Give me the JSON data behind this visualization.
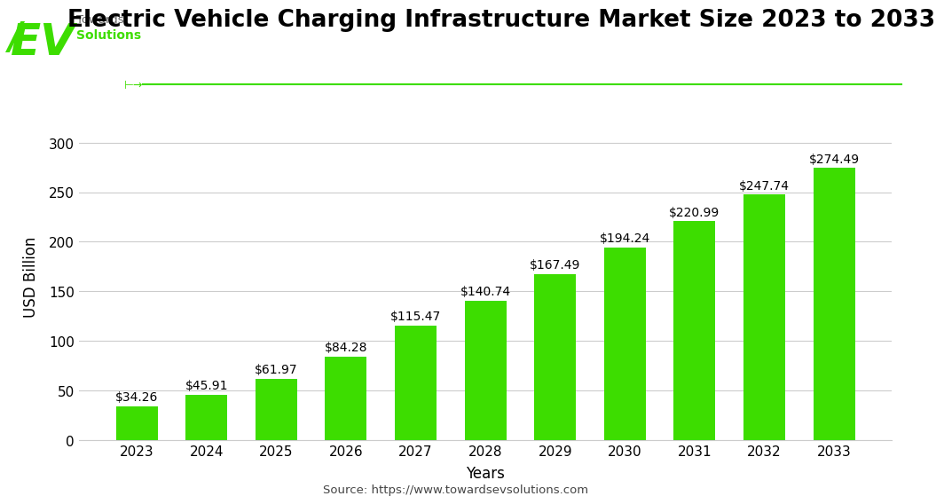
{
  "title": "Electric Vehicle Charging Infrastructure Market Size 2023 to 2033",
  "years": [
    "2023",
    "2024",
    "2025",
    "2026",
    "2027",
    "2028",
    "2029",
    "2030",
    "2031",
    "2032",
    "2033"
  ],
  "values": [
    34.26,
    45.91,
    61.97,
    84.28,
    115.47,
    140.74,
    167.49,
    194.24,
    220.99,
    247.74,
    274.49
  ],
  "labels": [
    "$34.26",
    "$45.91",
    "$61.97",
    "$84.28",
    "$115.47",
    "$140.74",
    "$167.49",
    "$194.24",
    "$220.99",
    "$247.74",
    "$274.49"
  ],
  "bar_color": "#3ddd00",
  "background_color": "#ffffff",
  "ylabel": "USD Billion",
  "xlabel": "Years",
  "ylim": [
    0,
    330
  ],
  "yticks": [
    0,
    50,
    100,
    150,
    200,
    250,
    300
  ],
  "grid_color": "#cccccc",
  "title_fontsize": 19,
  "axis_label_fontsize": 12,
  "tick_fontsize": 11,
  "bar_label_fontsize": 10,
  "source_text": "Source: https://www.towardsevsolutions.com",
  "logo_ev_color": "#3ddd00",
  "logo_text_color": "#555555",
  "logo_towards": "Towards",
  "logo_solutions": "Solutions"
}
